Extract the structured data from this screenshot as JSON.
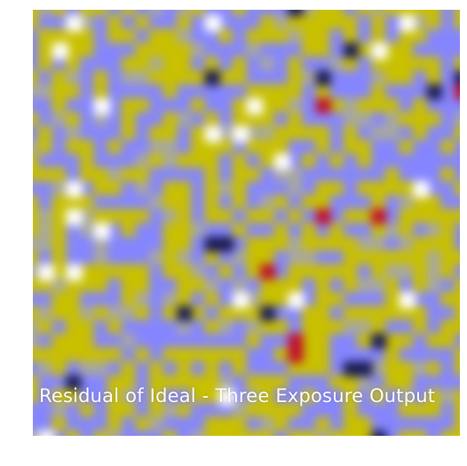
{
  "caption": "Residual of Ideal - Three Exposure Output",
  "colormap": {
    "low": "#000000",
    "mid_low": "#8585ff",
    "mid": "#a8a8a0",
    "mid_high": "#c8c000",
    "high": "#ffffff",
    "hot_spot": "#c0102a"
  }
}
